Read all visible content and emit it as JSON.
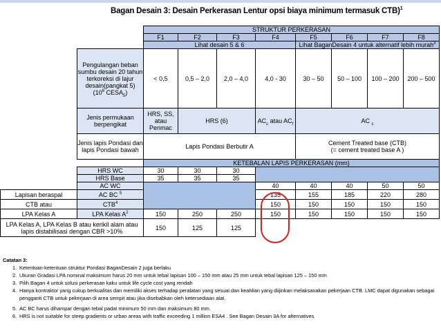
{
  "title": "Bagan Desain 3: Desain Perkerasan Lentur opsi biaya minimum termasuk CTB)",
  "title_sup": "1",
  "header": {
    "struktur": "STRUKTUR PERKERASAN",
    "columns": [
      "F1",
      "F2",
      "F3",
      "F4",
      "F5",
      "F6",
      "F7",
      "F8"
    ],
    "lihat_left": "Lihat  desain 5 & 6",
    "lihat_right": "Lihat BaganDesain 4 untuk alternatif lebih murah",
    "lihat_right_sup": "3"
  },
  "rows": {
    "pengulangan": {
      "label": "Pengulangan beban sumbu desain 20 tahun terkoreksi  di lajur desain(pangkat 5)",
      "label_tail": "(10",
      "label_tail_sup": "6",
      "label_tail_end": " CESA",
      "label_tail_sub": "5",
      "label_tail_close": ")",
      "values": [
        "< 0,5",
        "0,5 – 2,0",
        "2,0 – 4,0",
        "4,0 - 30",
        "30 – 50",
        "50 – 100",
        "100 – 200",
        "200 – 500"
      ]
    },
    "permukaan": {
      "label": "Jenis permukaan berpengikat",
      "f1": "HRS, SS, atau Penmac",
      "f2f3": "HRS (6)",
      "f4_a": "AC",
      "f4_sub1": "c",
      "f4_b": " atau AC",
      "f4_sub2": "f",
      "f5f8": "AC ",
      "f5f8_sub": "c"
    },
    "pondasi": {
      "label": "Jenis lapis Pondasi dan lapis Pondasi bawah",
      "left": "Lapis Pondasi Berbutir A",
      "right_1": "Cement Treated base (CTB)",
      "right_2": "(= cement treated base A )"
    },
    "ketebalan": "KETEBALAN LAPIS PERKERASAN (mm)",
    "hrs_wc": {
      "label": "HRS WC",
      "values": [
        "30",
        "30",
        "30"
      ]
    },
    "hrs_base": {
      "label": "HRS Base",
      "values": [
        "35",
        "35",
        "35"
      ]
    },
    "ac_wc": {
      "label": "AC WC",
      "values": [
        "40",
        "40",
        "40",
        "50",
        "50"
      ]
    },
    "ac_bc": {
      "side": "Lapisan beraspal",
      "label": "AC BC",
      "sup": "5",
      "values": [
        "135",
        "155",
        "185",
        "220",
        "280"
      ]
    },
    "ctb": {
      "side": "CTB atau",
      "label": "CTB",
      "sup": "4",
      "values": [
        "150",
        "150",
        "150",
        "150",
        "150"
      ]
    },
    "lpa": {
      "side": "LPA Kelas A",
      "label": "LPA Kelas A",
      "sup": "2",
      "values": [
        "150",
        "250",
        "250",
        "150",
        "150",
        "150",
        "150",
        "150"
      ]
    },
    "lpa_bawah": {
      "label": "LPA Kelas  A,  LPA Kelas B atau kerikil alam atau lapis distabilisasi dengan CBR >10%",
      "values": [
        "150",
        "125",
        "125"
      ]
    }
  },
  "notes": {
    "heading": "Catatan 3:",
    "items": [
      {
        "n": "1.",
        "text": "Ketentuan-ketentuan struktur Pondasi BaganDesain 2 juga berlaku"
      },
      {
        "n": "2.",
        "text": "Ukuran Gradasi LPA nominal maksimum harus 20 mm untuk tebal lapisan 100 – 150 mm atau 25 mm untuk tebal lapisan 125 – 150 mm"
      },
      {
        "n": "3.",
        "text": "Pilih Bagan  4 untuk solusi perkerasan kaku untuk life cycle cost yang rendah"
      },
      {
        "n": "4.",
        "text": "Hanya kontraktor yang cukup berkualitas dan memiliki akses terhadap peralatan yang sesuai dan keahlian yang diijinkan melaksanakan pekerjaan CTB. LMC dapat digunakan sebagai"
      },
      {
        "n": "",
        "text": "pengganti CTB untuk pekerjaan di area sempit atau jika disebabkan oleh ketersediaan alat."
      },
      {
        "n": "5.",
        "text": "AC BC harus dihampar dengan tebal padat minimum 50 mm dan maksimum 80 mm."
      },
      {
        "n": "6.",
        "text": "HRS is not suitable for steep gradients or urban areas with traffic exceeding 1 million ESA4 . See Bagan Desain 3A for alternatives"
      }
    ]
  }
}
